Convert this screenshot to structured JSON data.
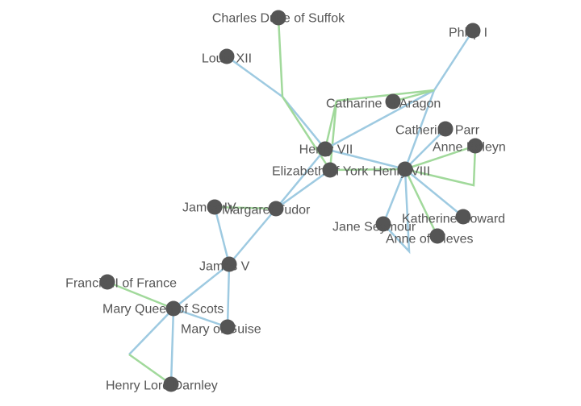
{
  "colors": {
    "parent_link": "#9ecae1",
    "marriage_link": "#a1d99b",
    "node": "#555555",
    "label": "#555555"
  },
  "nodes": [
    {
      "id": "charles",
      "label": "Charles Duke of Suffok"
    },
    {
      "id": "philip",
      "label": "Philip I"
    },
    {
      "id": "louis12",
      "label": "Louis XII"
    },
    {
      "id": "catharine",
      "label": "Catharine of Aragon"
    },
    {
      "id": "parr",
      "label": "Catherine Parr"
    },
    {
      "id": "henry7",
      "label": "Henry VII"
    },
    {
      "id": "boleyn",
      "label": "Anne Boleyn"
    },
    {
      "id": "elizabeth",
      "label": "Elizabeth of York"
    },
    {
      "id": "henry8",
      "label": "Henry VIII"
    },
    {
      "id": "james4",
      "label": "James IV"
    },
    {
      "id": "margaret",
      "label": "Margaret Tudor"
    },
    {
      "id": "howard",
      "label": "Katherine Howard"
    },
    {
      "id": "seymour",
      "label": "Jane Seymour"
    },
    {
      "id": "cleves",
      "label": "Anne of Cleves"
    },
    {
      "id": "james5",
      "label": "James V"
    },
    {
      "id": "francis2",
      "label": "Francis II of France"
    },
    {
      "id": "maryqs",
      "label": "Mary Queen of Scots"
    },
    {
      "id": "guise",
      "label": "Mary of Guise"
    },
    {
      "id": "darnley",
      "label": "Henry Lord Darnley"
    }
  ]
}
